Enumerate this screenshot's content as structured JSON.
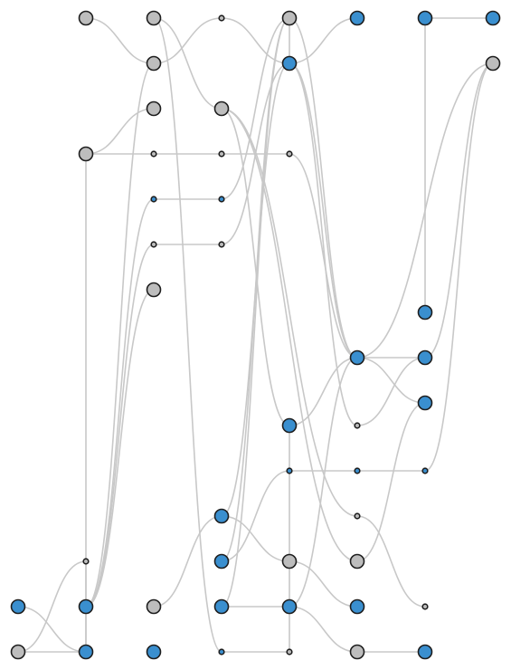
{
  "colors": {
    "background": "#ffffff",
    "edge": "#c8c8c8",
    "node_stroke": "#1e1e1e",
    "gray": "#bdbdbd",
    "blue": "#3a8fcf"
  },
  "nodes": [
    {
      "id": "n1",
      "x": 1,
      "y": 1,
      "size": "large",
      "color": "gray"
    },
    {
      "id": "n2",
      "x": 2,
      "y": 1,
      "size": "large",
      "color": "gray"
    },
    {
      "id": "n3",
      "x": 3,
      "y": 1,
      "size": "small",
      "color": "gray"
    },
    {
      "id": "n4",
      "x": 4,
      "y": 1,
      "size": "large",
      "color": "gray"
    },
    {
      "id": "n5",
      "x": 5,
      "y": 1,
      "size": "large",
      "color": "blue"
    },
    {
      "id": "n6",
      "x": 6,
      "y": 1,
      "size": "large",
      "color": "blue"
    },
    {
      "id": "n7",
      "x": 7,
      "y": 1,
      "size": "large",
      "color": "blue"
    },
    {
      "id": "n8",
      "x": 2,
      "y": 2,
      "size": "large",
      "color": "gray"
    },
    {
      "id": "n9",
      "x": 4,
      "y": 2,
      "size": "large",
      "color": "blue"
    },
    {
      "id": "n10",
      "x": 7,
      "y": 2,
      "size": "large",
      "color": "gray"
    },
    {
      "id": "n11",
      "x": 2,
      "y": 3,
      "size": "large",
      "color": "gray"
    },
    {
      "id": "n12",
      "x": 3,
      "y": 3,
      "size": "large",
      "color": "gray"
    },
    {
      "id": "n13",
      "x": 1,
      "y": 4,
      "size": "large",
      "color": "gray"
    },
    {
      "id": "n14",
      "x": 2,
      "y": 4,
      "size": "small",
      "color": "gray"
    },
    {
      "id": "n15",
      "x": 3,
      "y": 4,
      "size": "small",
      "color": "gray"
    },
    {
      "id": "n16",
      "x": 4,
      "y": 4,
      "size": "small",
      "color": "gray"
    },
    {
      "id": "n17",
      "x": 2,
      "y": 5,
      "size": "small",
      "color": "blue"
    },
    {
      "id": "n18",
      "x": 3,
      "y": 5,
      "size": "small",
      "color": "blue"
    },
    {
      "id": "n19",
      "x": 2,
      "y": 6,
      "size": "small",
      "color": "gray"
    },
    {
      "id": "n20",
      "x": 3,
      "y": 6,
      "size": "small",
      "color": "gray"
    },
    {
      "id": "n21",
      "x": 2,
      "y": 7,
      "size": "large",
      "color": "gray"
    },
    {
      "id": "n22",
      "x": 6,
      "y": 7.5,
      "size": "large",
      "color": "blue"
    },
    {
      "id": "n23",
      "x": 5,
      "y": 8.5,
      "size": "large",
      "color": "blue"
    },
    {
      "id": "n24",
      "x": 6,
      "y": 8.5,
      "size": "large",
      "color": "blue"
    },
    {
      "id": "n25",
      "x": 6,
      "y": 9.5,
      "size": "large",
      "color": "blue"
    },
    {
      "id": "n26",
      "x": 4,
      "y": 10,
      "size": "large",
      "color": "blue"
    },
    {
      "id": "n27",
      "x": 5,
      "y": 10,
      "size": "small",
      "color": "gray"
    },
    {
      "id": "n28",
      "x": 4,
      "y": 11,
      "size": "small",
      "color": "blue"
    },
    {
      "id": "n29",
      "x": 5,
      "y": 11,
      "size": "small",
      "color": "blue"
    },
    {
      "id": "n30",
      "x": 6,
      "y": 11,
      "size": "small",
      "color": "blue"
    },
    {
      "id": "n31",
      "x": 3,
      "y": 12,
      "size": "large",
      "color": "blue"
    },
    {
      "id": "n32",
      "x": 5,
      "y": 12,
      "size": "small",
      "color": "gray"
    },
    {
      "id": "n33",
      "x": 1,
      "y": 13,
      "size": "small",
      "color": "gray"
    },
    {
      "id": "n34",
      "x": 3,
      "y": 13,
      "size": "large",
      "color": "blue"
    },
    {
      "id": "n35",
      "x": 4,
      "y": 13,
      "size": "large",
      "color": "gray"
    },
    {
      "id": "n36",
      "x": 5,
      "y": 13,
      "size": "large",
      "color": "gray"
    },
    {
      "id": "n37",
      "x": 0,
      "y": 14,
      "size": "large",
      "color": "blue"
    },
    {
      "id": "n38",
      "x": 1,
      "y": 14,
      "size": "large",
      "color": "blue"
    },
    {
      "id": "n39",
      "x": 2,
      "y": 14,
      "size": "large",
      "color": "gray"
    },
    {
      "id": "n40",
      "x": 3,
      "y": 14,
      "size": "large",
      "color": "blue"
    },
    {
      "id": "n41",
      "x": 4,
      "y": 14,
      "size": "large",
      "color": "blue"
    },
    {
      "id": "n42",
      "x": 5,
      "y": 14,
      "size": "large",
      "color": "blue"
    },
    {
      "id": "n43",
      "x": 6,
      "y": 14,
      "size": "small",
      "color": "gray"
    },
    {
      "id": "n44",
      "x": 0,
      "y": 15,
      "size": "large",
      "color": "gray"
    },
    {
      "id": "n45",
      "x": 1,
      "y": 15,
      "size": "large",
      "color": "blue"
    },
    {
      "id": "n46",
      "x": 2,
      "y": 15,
      "size": "large",
      "color": "blue"
    },
    {
      "id": "n47",
      "x": 3,
      "y": 15,
      "size": "small",
      "color": "blue"
    },
    {
      "id": "n48",
      "x": 4,
      "y": 15,
      "size": "small",
      "color": "gray"
    },
    {
      "id": "n49",
      "x": 5,
      "y": 15,
      "size": "large",
      "color": "gray"
    },
    {
      "id": "n50",
      "x": 6,
      "y": 15,
      "size": "large",
      "color": "blue"
    }
  ],
  "edges": [
    [
      "n1",
      "n8"
    ],
    [
      "n2",
      "n12"
    ],
    [
      "n2",
      "n47"
    ],
    [
      "n3",
      "n8"
    ],
    [
      "n3",
      "n9"
    ],
    [
      "n4",
      "n9"
    ],
    [
      "n4",
      "n23"
    ],
    [
      "n5",
      "n9"
    ],
    [
      "n6",
      "n7"
    ],
    [
      "n6",
      "n22"
    ],
    [
      "n8",
      "n38"
    ],
    [
      "n9",
      "n23"
    ],
    [
      "n9",
      "n27"
    ],
    [
      "n9",
      "n31"
    ],
    [
      "n10",
      "n23"
    ],
    [
      "n10",
      "n30"
    ],
    [
      "n11",
      "n13"
    ],
    [
      "n12",
      "n26"
    ],
    [
      "n12",
      "n36"
    ],
    [
      "n12",
      "n32"
    ],
    [
      "n13",
      "n14"
    ],
    [
      "n14",
      "n15"
    ],
    [
      "n15",
      "n16"
    ],
    [
      "n13",
      "n45"
    ],
    [
      "n16",
      "n23"
    ],
    [
      "n17",
      "n18"
    ],
    [
      "n17",
      "n38"
    ],
    [
      "n18",
      "n4"
    ],
    [
      "n19",
      "n20"
    ],
    [
      "n19",
      "n38"
    ],
    [
      "n20",
      "n9"
    ],
    [
      "n21",
      "n38"
    ],
    [
      "n23",
      "n24"
    ],
    [
      "n23",
      "n25"
    ],
    [
      "n23",
      "n41"
    ],
    [
      "n24",
      "n10"
    ],
    [
      "n26",
      "n23"
    ],
    [
      "n26",
      "n48"
    ],
    [
      "n27",
      "n24"
    ],
    [
      "n28",
      "n29"
    ],
    [
      "n29",
      "n30"
    ],
    [
      "n28",
      "n34"
    ],
    [
      "n31",
      "n35"
    ],
    [
      "n32",
      "n43"
    ],
    [
      "n33",
      "n44"
    ],
    [
      "n33",
      "n38"
    ],
    [
      "n34",
      "n4"
    ],
    [
      "n35",
      "n42"
    ],
    [
      "n36",
      "n25"
    ],
    [
      "n37",
      "n45"
    ],
    [
      "n39",
      "n31"
    ],
    [
      "n40",
      "n41"
    ],
    [
      "n41",
      "n49"
    ],
    [
      "n44",
      "n45"
    ],
    [
      "n45",
      "n38"
    ],
    [
      "n47",
      "n48"
    ],
    [
      "n49",
      "n50"
    ],
    [
      "n40",
      "n4"
    ]
  ]
}
